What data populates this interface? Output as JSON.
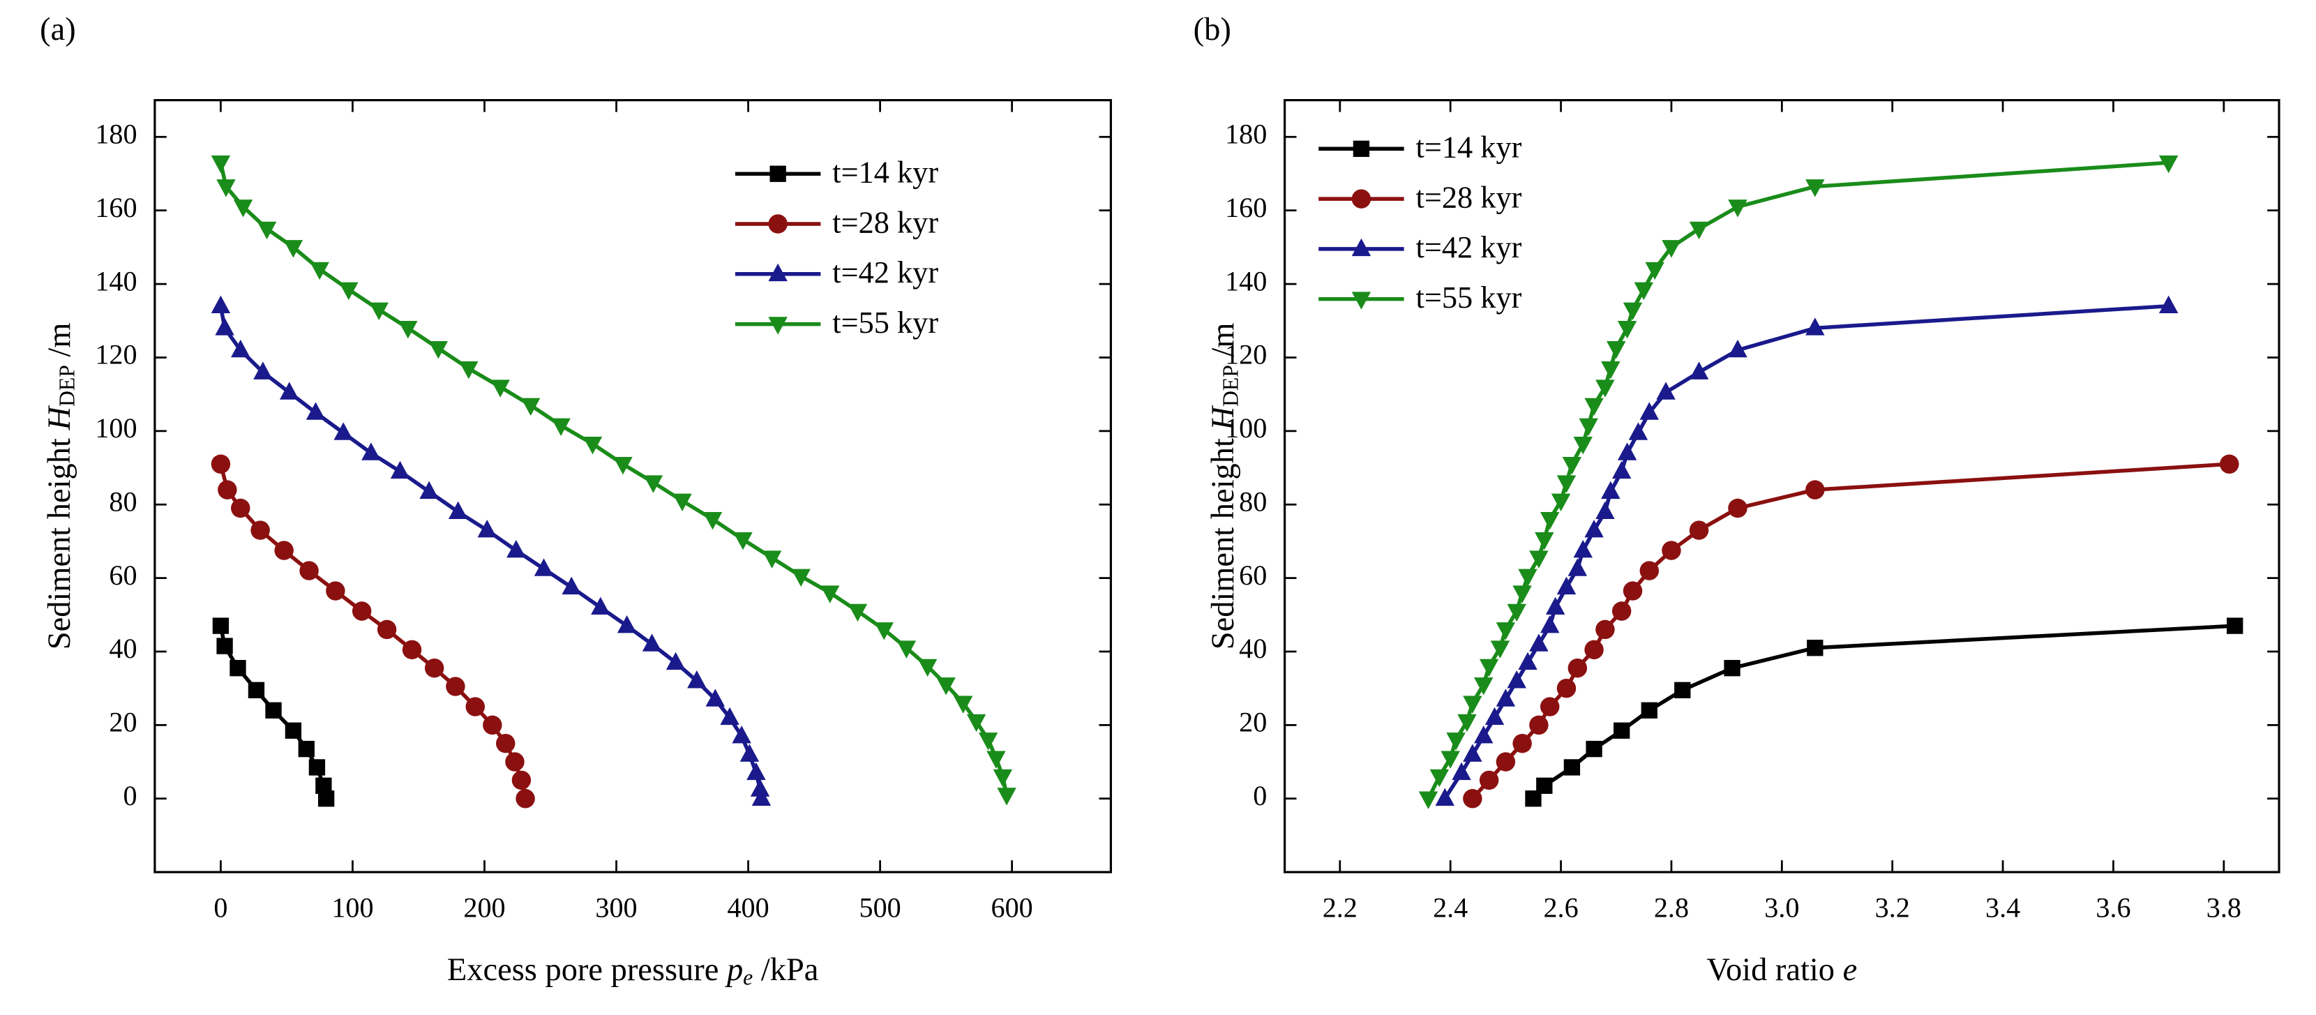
{
  "chart_data": [
    {
      "type": "line",
      "panel_label": "(a)",
      "x_label": "Excess pore pressure ",
      "x_label_var": "p",
      "x_label_sub": "e",
      "x_label_end": " /kPa",
      "y_label": "Sediment height ",
      "y_label_var": "H",
      "y_label_sub": "DEP",
      "y_label_end": " /m",
      "xlim": [
        -50,
        675
      ],
      "xticks": [
        0,
        100,
        200,
        300,
        400,
        500,
        600
      ],
      "ylim": [
        -20,
        190
      ],
      "yticks": [
        0,
        20,
        40,
        60,
        80,
        100,
        120,
        140,
        160,
        180
      ],
      "legend": "upper right",
      "series": [
        {
          "name": "t=14 kyr",
          "color": "#000000",
          "marker": "square",
          "x": [
            80,
            78,
            73,
            65,
            55,
            40,
            27,
            13,
            3,
            0
          ],
          "values": [
            0,
            3.5,
            8.5,
            13.5,
            18.5,
            24,
            29.5,
            35.5,
            41.5,
            47
          ]
        },
        {
          "name": "t=28 kyr",
          "color": "#8b1010",
          "marker": "circle",
          "x": [
            231,
            228,
            223,
            216,
            206,
            193,
            178,
            162,
            145,
            126,
            107,
            87,
            67,
            48,
            30,
            15,
            5,
            0
          ],
          "values": [
            0,
            5,
            10,
            15,
            20,
            25,
            30.5,
            35.5,
            40.5,
            46,
            51,
            56.5,
            62,
            67.5,
            73,
            79,
            84,
            91
          ]
        },
        {
          "name": "t=42 kyr",
          "color": "#1a1a8c",
          "marker": "triangle-up",
          "x": [
            410,
            409,
            406,
            401,
            395,
            386,
            375,
            361,
            345,
            327,
            308,
            288,
            266,
            245,
            224,
            202,
            180,
            158,
            136,
            114,
            93,
            72,
            52,
            32,
            15,
            3,
            0
          ],
          "values": [
            0,
            2.5,
            7,
            12,
            17,
            22,
            27,
            32,
            37,
            42,
            47,
            52,
            57.5,
            62.5,
            67.5,
            73,
            78,
            83.5,
            89,
            94,
            99.5,
            105,
            110.5,
            116,
            122,
            128,
            134
          ]
        },
        {
          "name": "t=55 kyr",
          "color": "#1a8c1a",
          "marker": "triangle-down",
          "x": [
            596,
            593,
            588,
            582,
            573,
            563,
            550,
            536,
            520,
            503,
            483,
            462,
            440,
            418,
            396,
            373,
            350,
            328,
            305,
            282,
            258,
            235,
            212,
            188,
            165,
            142,
            120,
            97,
            75,
            55,
            35,
            17,
            4,
            0
          ],
          "values": [
            1,
            6,
            11,
            16,
            21,
            26,
            31,
            36,
            41,
            46,
            51,
            56,
            60.5,
            65.5,
            70.5,
            76,
            81,
            86,
            91,
            96.5,
            101.5,
            107,
            112,
            117,
            122.5,
            128,
            133,
            138.5,
            144,
            150,
            155,
            161,
            166.5,
            173
          ]
        }
      ]
    },
    {
      "type": "line",
      "panel_label": "(b)",
      "x_label": "Void ratio ",
      "x_label_var": "e",
      "y_label": "Sediment height ",
      "y_label_var": "H",
      "y_label_sub": "DEP",
      "y_label_end": " /m",
      "xlim": [
        2.1,
        3.9
      ],
      "xticks": [
        2.2,
        2.4,
        2.6,
        2.8,
        {
          "value": 3,
          "label": "3.0"
        },
        3.2,
        3.4,
        3.6,
        3.8
      ],
      "ylim": [
        -20,
        190
      ],
      "yticks": [
        0,
        20,
        40,
        60,
        80,
        100,
        120,
        140,
        160,
        180
      ],
      "legend": "upper left",
      "series": [
        {
          "name": "t=14 kyr",
          "color": "#000000",
          "marker": "square",
          "x": [
            2.55,
            2.57,
            2.62,
            2.66,
            2.71,
            2.76,
            2.82,
            2.91,
            3.06,
            3.82
          ],
          "values": [
            0,
            3.5,
            8.5,
            13.5,
            18.5,
            24,
            29.5,
            35.5,
            41,
            47
          ]
        },
        {
          "name": "t=28 kyr",
          "color": "#8b1010",
          "marker": "circle",
          "x": [
            2.44,
            2.47,
            2.5,
            2.53,
            2.56,
            2.58,
            2.61,
            2.63,
            2.66,
            2.68,
            2.71,
            2.73,
            2.76,
            2.8,
            2.85,
            2.92,
            3.06,
            3.81
          ],
          "values": [
            0,
            5,
            10,
            15,
            20,
            25,
            30,
            35.5,
            40.5,
            46,
            51,
            56.5,
            62,
            67.5,
            73,
            79,
            84,
            91
          ]
        },
        {
          "name": "t=42 kyr",
          "color": "#1a1a8c",
          "marker": "triangle-up",
          "x": [
            2.39,
            2.42,
            2.44,
            2.46,
            2.48,
            2.5,
            2.52,
            2.54,
            2.56,
            2.58,
            2.59,
            2.61,
            2.63,
            2.64,
            2.66,
            2.68,
            2.69,
            2.71,
            2.72,
            2.74,
            2.76,
            2.79,
            2.85,
            2.92,
            3.06,
            3.7
          ],
          "values": [
            0,
            7,
            12,
            17,
            22,
            27,
            32,
            37,
            42,
            47,
            52,
            57.5,
            62.5,
            67.5,
            73,
            78,
            83.5,
            89,
            94,
            99.5,
            105,
            110.5,
            116,
            122,
            128,
            134
          ]
        },
        {
          "name": "t=55 kyr",
          "color": "#1a8c1a",
          "marker": "triangle-down",
          "x": [
            2.36,
            2.38,
            2.4,
            2.41,
            2.43,
            2.44,
            2.46,
            2.47,
            2.49,
            2.5,
            2.52,
            2.53,
            2.54,
            2.56,
            2.57,
            2.58,
            2.6,
            2.61,
            2.62,
            2.64,
            2.65,
            2.66,
            2.68,
            2.69,
            2.7,
            2.72,
            2.73,
            2.75,
            2.77,
            2.8,
            2.85,
            2.92,
            3.06,
            3.7
          ],
          "values": [
            0,
            6,
            11,
            16,
            21,
            26,
            31,
            36,
            41,
            46,
            51,
            56,
            60.5,
            65.5,
            70.5,
            76,
            81,
            86,
            91,
            96.5,
            101.5,
            107,
            112,
            117,
            122.5,
            128,
            133,
            138.5,
            144,
            150,
            155,
            161,
            166.5,
            173
          ]
        }
      ]
    }
  ]
}
